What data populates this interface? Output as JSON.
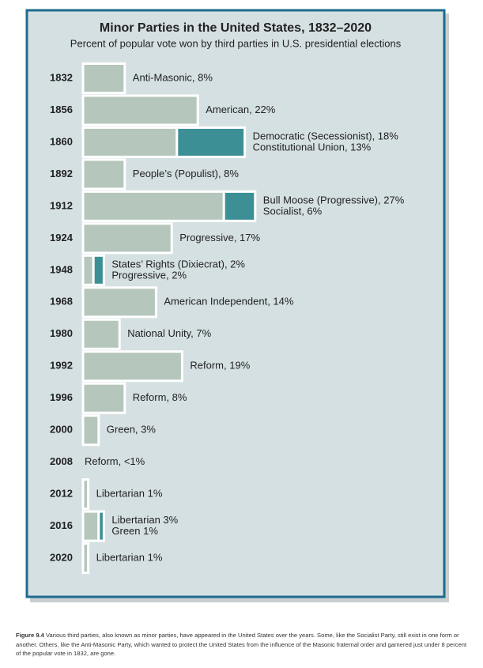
{
  "chart_data": {
    "type": "bar",
    "orientation": "horizontal",
    "title": "Minor Parties in the United States, 1832–2020",
    "subtitle": "Percent of popular vote won by third parties in U.S. presidential elections",
    "categories": [
      "1832",
      "1856",
      "1860",
      "1892",
      "1912",
      "1924",
      "1948",
      "1968",
      "1980",
      "1992",
      "1996",
      "2000",
      "2008",
      "2012",
      "2016",
      "2020"
    ],
    "series": [
      {
        "color": "#b5c6bc",
        "values": [
          8,
          22,
          18,
          8,
          27,
          17,
          2,
          14,
          7,
          19,
          8,
          3,
          null,
          1,
          3,
          1
        ],
        "value_labels": [
          "Anti-Masonic, 8%",
          "American, 22%",
          "Democratic (Secessionist), 18%",
          "People’s (Populist), 8%",
          "Bull Moose (Progressive), 27%",
          "Progressive, 17%",
          "States’ Rights (Dixiecrat), 2%",
          "American Independent, 14%",
          "National Unity, 7%",
          "Reform, 19%",
          "Reform, 8%",
          "Green, 3%",
          "Reform, <1%",
          "Libertarian 1%",
          "Libertarian 3%",
          "Libertarian 1%"
        ]
      },
      {
        "color": "#3c8f95",
        "values": [
          null,
          null,
          13,
          null,
          6,
          null,
          2,
          null,
          null,
          null,
          null,
          null,
          null,
          null,
          1,
          null
        ],
        "value_labels": [
          null,
          null,
          "Constitutional Union, 13%",
          null,
          "Socialist, 6%",
          null,
          "Progressive, 2%",
          null,
          null,
          null,
          null,
          null,
          null,
          null,
          "Green 1%",
          null
        ]
      }
    ]
  },
  "caption": {
    "label": "Figure 9.4",
    "text": "Various third parties, also known as minor parties, have appeared in the United States over the years. Some, like the Socialist Party, still exist in one form or another. Others, like the Anti-Masonic Party, which wanted to protect the United States from the influence of the Masonic fraternal order and garnered just under 8 percent of the popular vote in 1832, are gone."
  }
}
